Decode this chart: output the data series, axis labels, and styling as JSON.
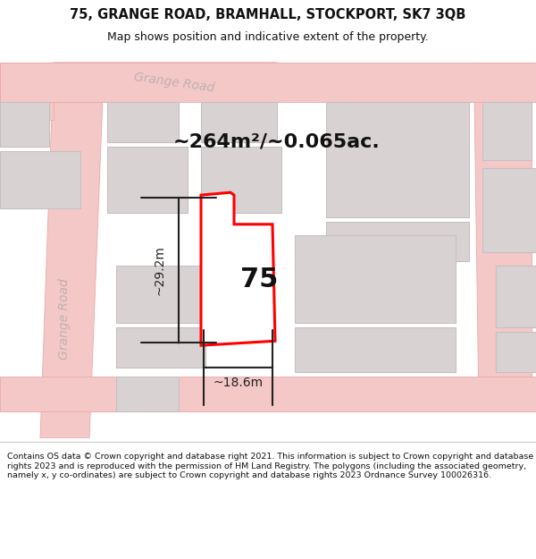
{
  "title_line1": "75, GRANGE ROAD, BRAMHALL, STOCKPORT, SK7 3QB",
  "title_line2": "Map shows position and indicative extent of the property.",
  "area_text": "~264m²/~0.065ac.",
  "label_75": "75",
  "dim_height": "~29.2m",
  "dim_width": "~18.6m",
  "footer_text": "Contains OS data © Crown copyright and database right 2021. This information is subject to Crown copyright and database rights 2023 and is reproduced with the permission of HM Land Registry. The polygons (including the associated geometry, namely x, y co-ordinates) are subject to Crown copyright and database rights 2023 Ordnance Survey 100026316.",
  "bg_color": "#ffffff",
  "map_bg": "#faf6f6",
  "road_color": "#f5c8c8",
  "road_outline_color": "#e8a8a8",
  "building_color": "#d8d2d2",
  "building_outline": "#c8c0c0",
  "property_fill": "#ffffff",
  "property_outline": "#ff0000",
  "road_label_color": "#c0b0b0",
  "grange_road_diag": "Grange Road",
  "grange_road_vert": "Grange Road",
  "dim_color": "#222222",
  "title_fontsize": 10.5,
  "subtitle_fontsize": 9,
  "area_fontsize": 16,
  "label75_fontsize": 22,
  "dim_fontsize": 10,
  "road_label_fontsize": 10,
  "footer_fontsize": 6.8
}
